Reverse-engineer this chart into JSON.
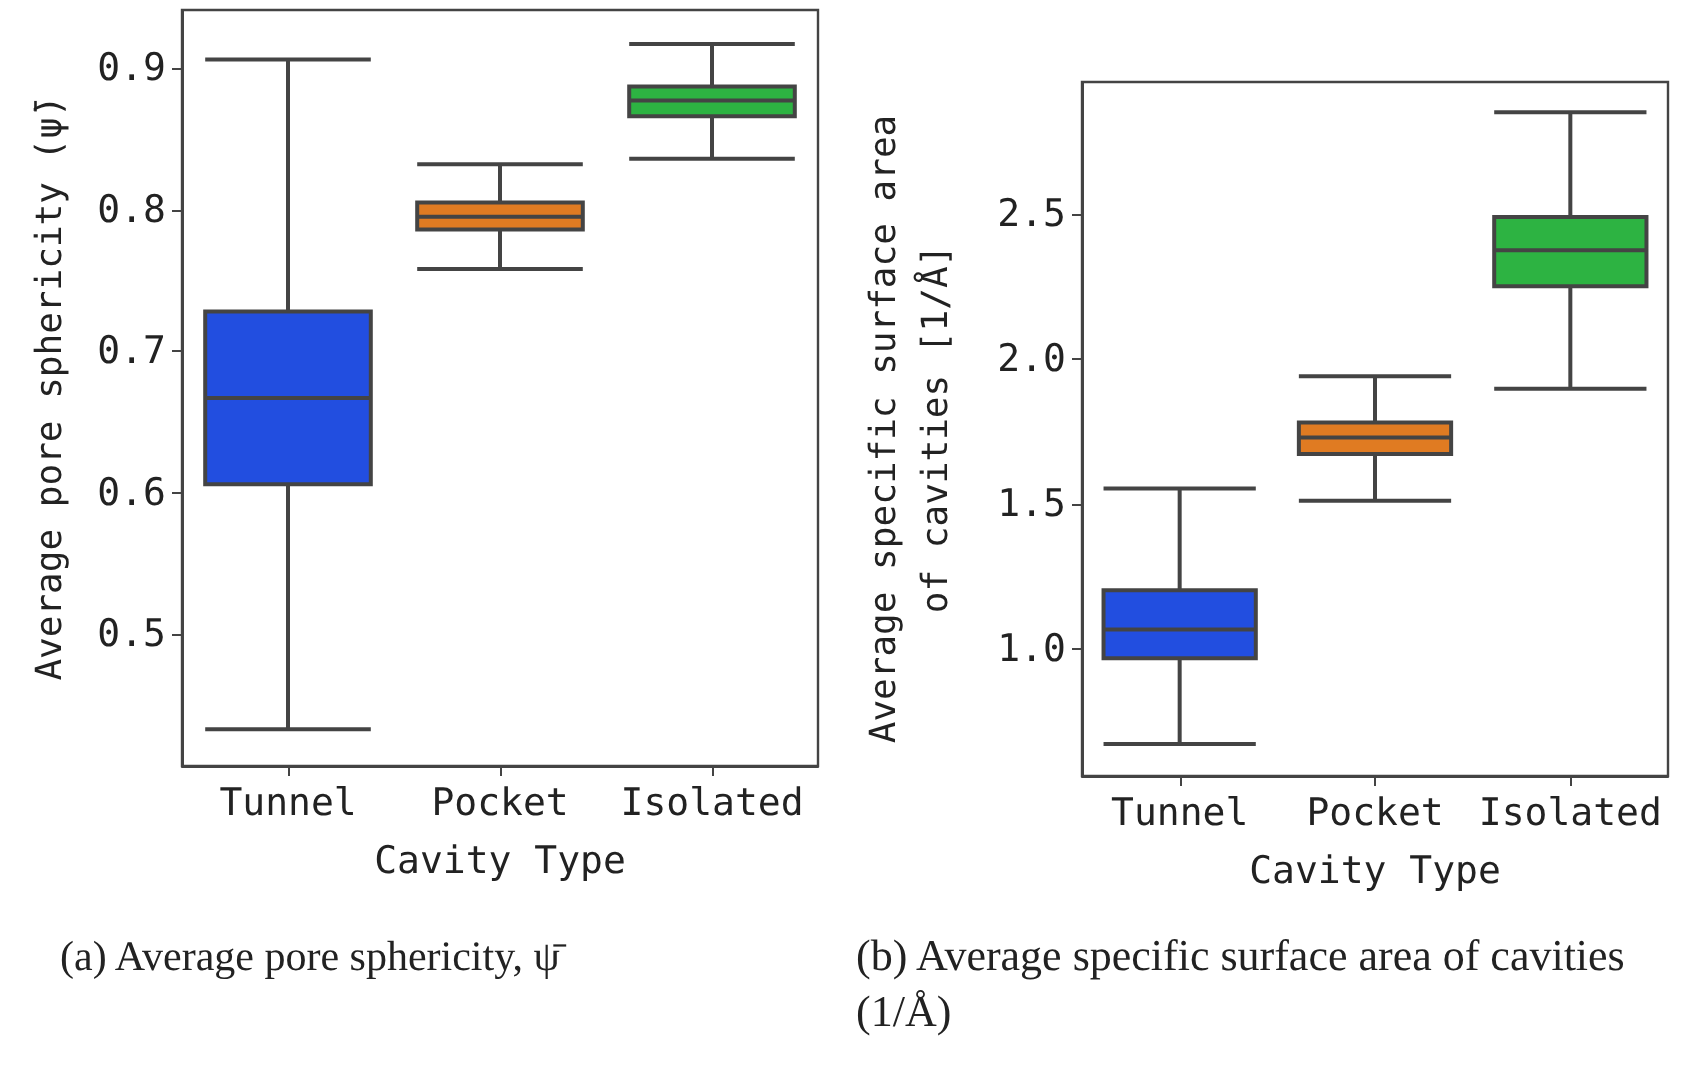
{
  "chart_data": [
    {
      "type": "box",
      "xlabel": "Cavity Type",
      "ylabel": "Average pore sphericity (ψ̄)",
      "categories": [
        "Tunnel",
        "Pocket",
        "Isolated"
      ],
      "colors": [
        "#224ee0",
        "#e07b22",
        "#2db342"
      ],
      "boxes": [
        {
          "low": 0.433,
          "q1": 0.606,
          "median": 0.667,
          "q3": 0.728,
          "high": 0.906
        },
        {
          "low": 0.758,
          "q1": 0.786,
          "median": 0.795,
          "q3": 0.805,
          "high": 0.832
        },
        {
          "low": 0.836,
          "q1": 0.866,
          "median": 0.877,
          "q3": 0.887,
          "high": 0.917
        }
      ],
      "ylim": [
        0.407,
        0.941
      ],
      "yticks": [
        0.5,
        0.6,
        0.7,
        0.8,
        0.9
      ],
      "annotations": [
        "(a) Average pore sphericity, ψ̄"
      ]
    },
    {
      "type": "box",
      "xlabel": "Cavity Type",
      "ylabel": "Average specific surface area\nof cavities [1/Å]",
      "categories": [
        "Tunnel",
        "Pocket",
        "Isolated"
      ],
      "colors": [
        "#224ee0",
        "#e07b22",
        "#2db342"
      ],
      "boxes": [
        {
          "low": 0.672,
          "q1": 0.968,
          "median": 1.067,
          "q3": 1.202,
          "high": 1.553
        },
        {
          "low": 1.511,
          "q1": 1.672,
          "median": 1.729,
          "q3": 1.78,
          "high": 1.94
        },
        {
          "low": 1.897,
          "q1": 2.25,
          "median": 2.374,
          "q3": 2.489,
          "high": 2.85
        }
      ],
      "ylim": [
        0.562,
        2.954
      ],
      "yticks": [
        {
          "value": 1,
          "label": "1.0"
        },
        1.5,
        {
          "value": 2,
          "label": "2.0"
        },
        2.5
      ],
      "annotations": [
        "(b) Average specific surface area of cavities (1/Å)"
      ]
    }
  ]
}
